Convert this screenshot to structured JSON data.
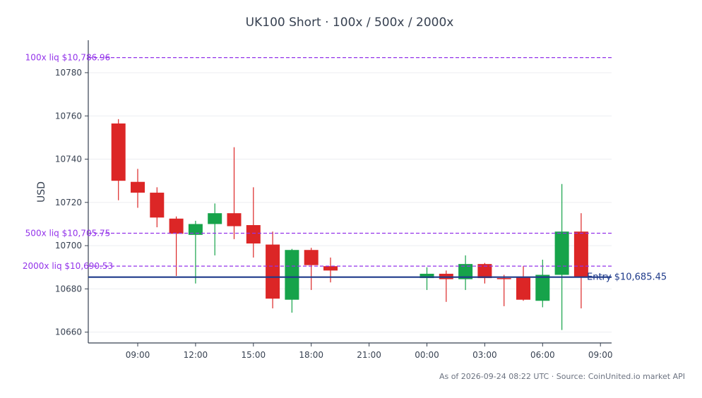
{
  "chart_data": {
    "type": "candlestick",
    "title": "UK100 Short · 100x / 500x / 2000x",
    "ylabel": "USD",
    "xlabel": "",
    "ylim": [
      10655,
      10795
    ],
    "yticks": [
      10660,
      10680,
      10700,
      10720,
      10740,
      10760,
      10780
    ],
    "x_ticks": [
      "09:00",
      "12:00",
      "15:00",
      "18:00",
      "21:00",
      "00:00",
      "03:00",
      "06:00",
      "09:00"
    ],
    "grid": true,
    "colors": {
      "up": "#16a34a",
      "down": "#dc2626",
      "entry": "#1e3a8a",
      "liq": "#9333ea"
    },
    "candles": [
      {
        "t": "08:00",
        "open": 10756.5,
        "high": 10758.5,
        "low": 10721.0,
        "close": 10730.0
      },
      {
        "t": "09:00",
        "open": 10729.5,
        "high": 10735.5,
        "low": 10717.5,
        "close": 10724.5
      },
      {
        "t": "10:00",
        "open": 10724.5,
        "high": 10727.0,
        "low": 10708.5,
        "close": 10713.0
      },
      {
        "t": "11:00",
        "open": 10712.5,
        "high": 10713.5,
        "low": 10686.0,
        "close": 10705.5
      },
      {
        "t": "12:00",
        "open": 10705.0,
        "high": 10711.5,
        "low": 10682.5,
        "close": 10710.0
      },
      {
        "t": "13:00",
        "open": 10710.0,
        "high": 10719.5,
        "low": 10695.5,
        "close": 10715.0
      },
      {
        "t": "14:00",
        "open": 10715.0,
        "high": 10745.5,
        "low": 10703.0,
        "close": 10709.0
      },
      {
        "t": "15:00",
        "open": 10709.5,
        "high": 10727.0,
        "low": 10694.5,
        "close": 10701.0
      },
      {
        "t": "16:00",
        "open": 10700.5,
        "high": 10706.5,
        "low": 10671.0,
        "close": 10675.5
      },
      {
        "t": "17:00",
        "open": 10675.0,
        "high": 10698.5,
        "low": 10669.0,
        "close": 10698.0
      },
      {
        "t": "18:00",
        "open": 10698.0,
        "high": 10699.0,
        "low": 10679.5,
        "close": 10691.0
      },
      {
        "t": "19:00",
        "open": 10690.5,
        "high": 10694.5,
        "low": 10683.0,
        "close": 10688.5
      },
      {
        "t": "00:00",
        "open": 10685.0,
        "high": 10690.0,
        "low": 10679.5,
        "close": 10687.0
      },
      {
        "t": "01:00",
        "open": 10687.0,
        "high": 10688.5,
        "low": 10674.0,
        "close": 10684.5
      },
      {
        "t": "02:00",
        "open": 10684.5,
        "high": 10695.5,
        "low": 10679.5,
        "close": 10691.5
      },
      {
        "t": "03:00",
        "open": 10691.5,
        "high": 10692.0,
        "low": 10682.5,
        "close": 10685.0
      },
      {
        "t": "04:00",
        "open": 10685.0,
        "high": 10686.5,
        "low": 10672.0,
        "close": 10684.5
      },
      {
        "t": "05:00",
        "open": 10685.5,
        "high": 10690.5,
        "low": 10674.5,
        "close": 10675.0
      },
      {
        "t": "06:00",
        "open": 10674.5,
        "high": 10693.5,
        "low": 10671.5,
        "close": 10686.5
      },
      {
        "t": "07:00",
        "open": 10686.5,
        "high": 10728.5,
        "low": 10661.0,
        "close": 10706.5
      },
      {
        "t": "08:00",
        "open": 10706.5,
        "high": 10715.0,
        "low": 10671.0,
        "close": 10685.5
      }
    ],
    "entry": {
      "value": 10685.45,
      "label": "Entry $10,685.45"
    },
    "liquidations": [
      {
        "value": 10786.96,
        "label": "100x liq $10,786.96"
      },
      {
        "value": 10705.75,
        "label": "500x liq $10,705.75"
      },
      {
        "value": 10690.53,
        "label": "2000x liq $10,690.53"
      }
    ],
    "footer": "As of 2026-09-24 08:22 UTC · Source: CoinUnited.io market API"
  }
}
